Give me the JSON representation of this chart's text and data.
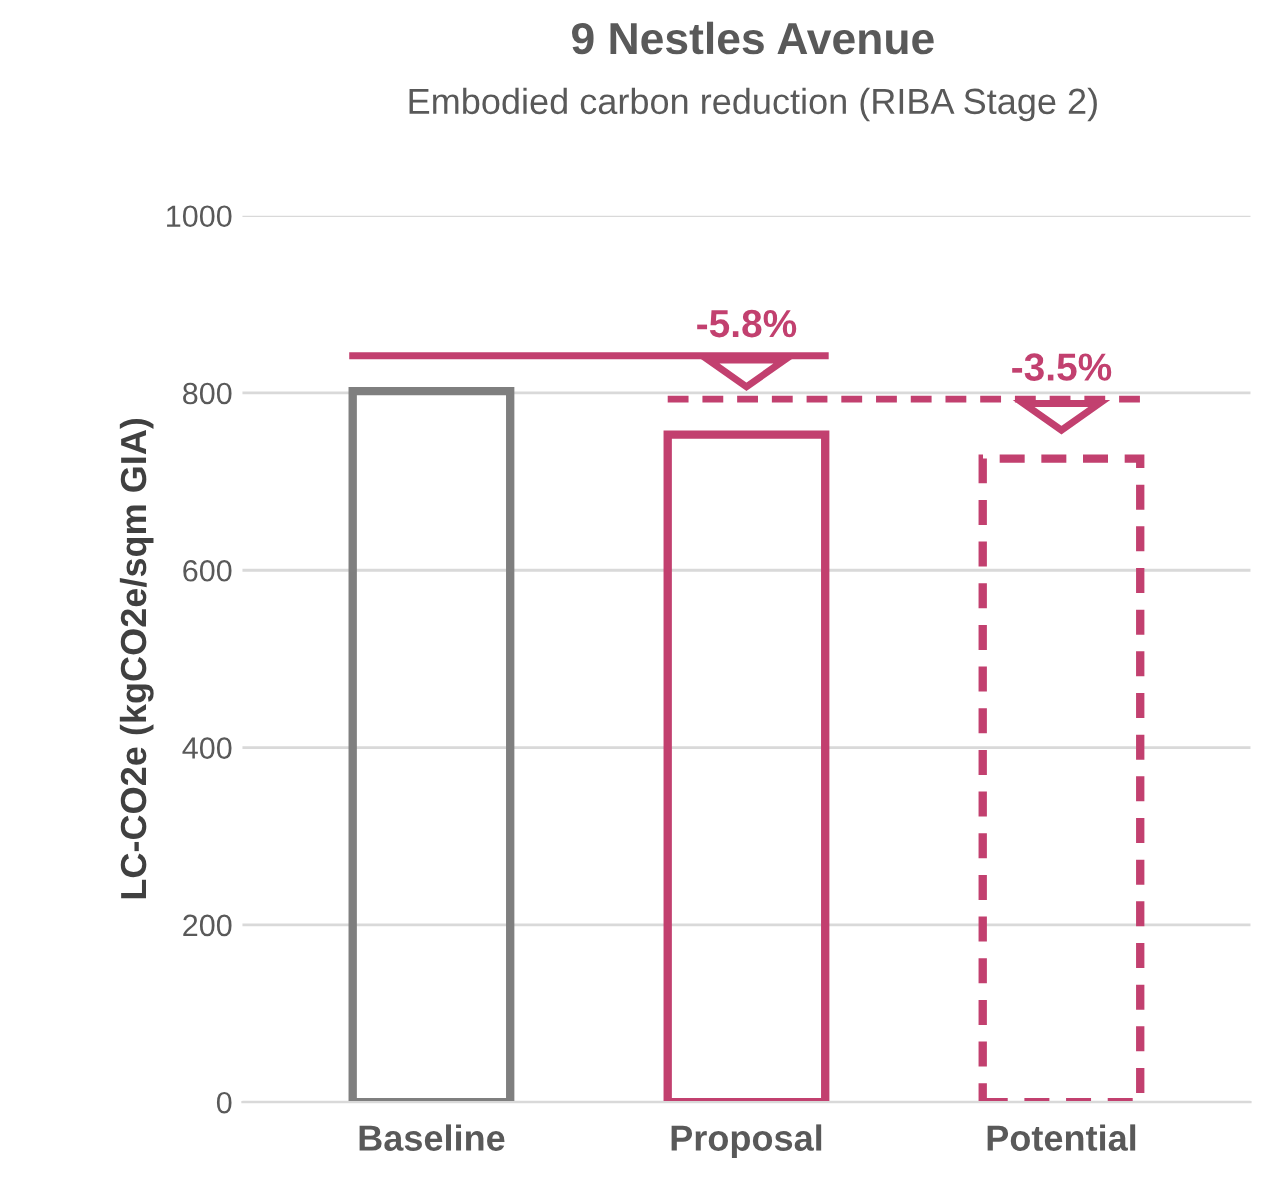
{
  "chart_data": {
    "type": "bar",
    "title": "9 Nestles Avenue",
    "subtitle": "Embodied carbon reduction (RIBA Stage 2)",
    "ylabel": "LC-CO2e (kgCO2e/sqm GIA)",
    "categories": [
      "Baseline",
      "Proposal",
      "Potential"
    ],
    "series": [
      {
        "color": "#7f7f7f",
        "values": [
          802,
          null,
          null
        ],
        "line_style": "solid"
      },
      {
        "color": "#c2406f",
        "values": [
          null,
          753,
          null
        ],
        "line_style": "solid"
      },
      {
        "color": "#c2406f",
        "values": [
          null,
          null,
          726
        ],
        "line_style": "dashed"
      }
    ],
    "ylim": [
      0,
      1000
    ],
    "yticks": [
      0,
      200,
      400,
      600,
      800,
      1000
    ],
    "grid": "y",
    "annotations": [
      "-5.8%",
      "-3.5%"
    ]
  }
}
